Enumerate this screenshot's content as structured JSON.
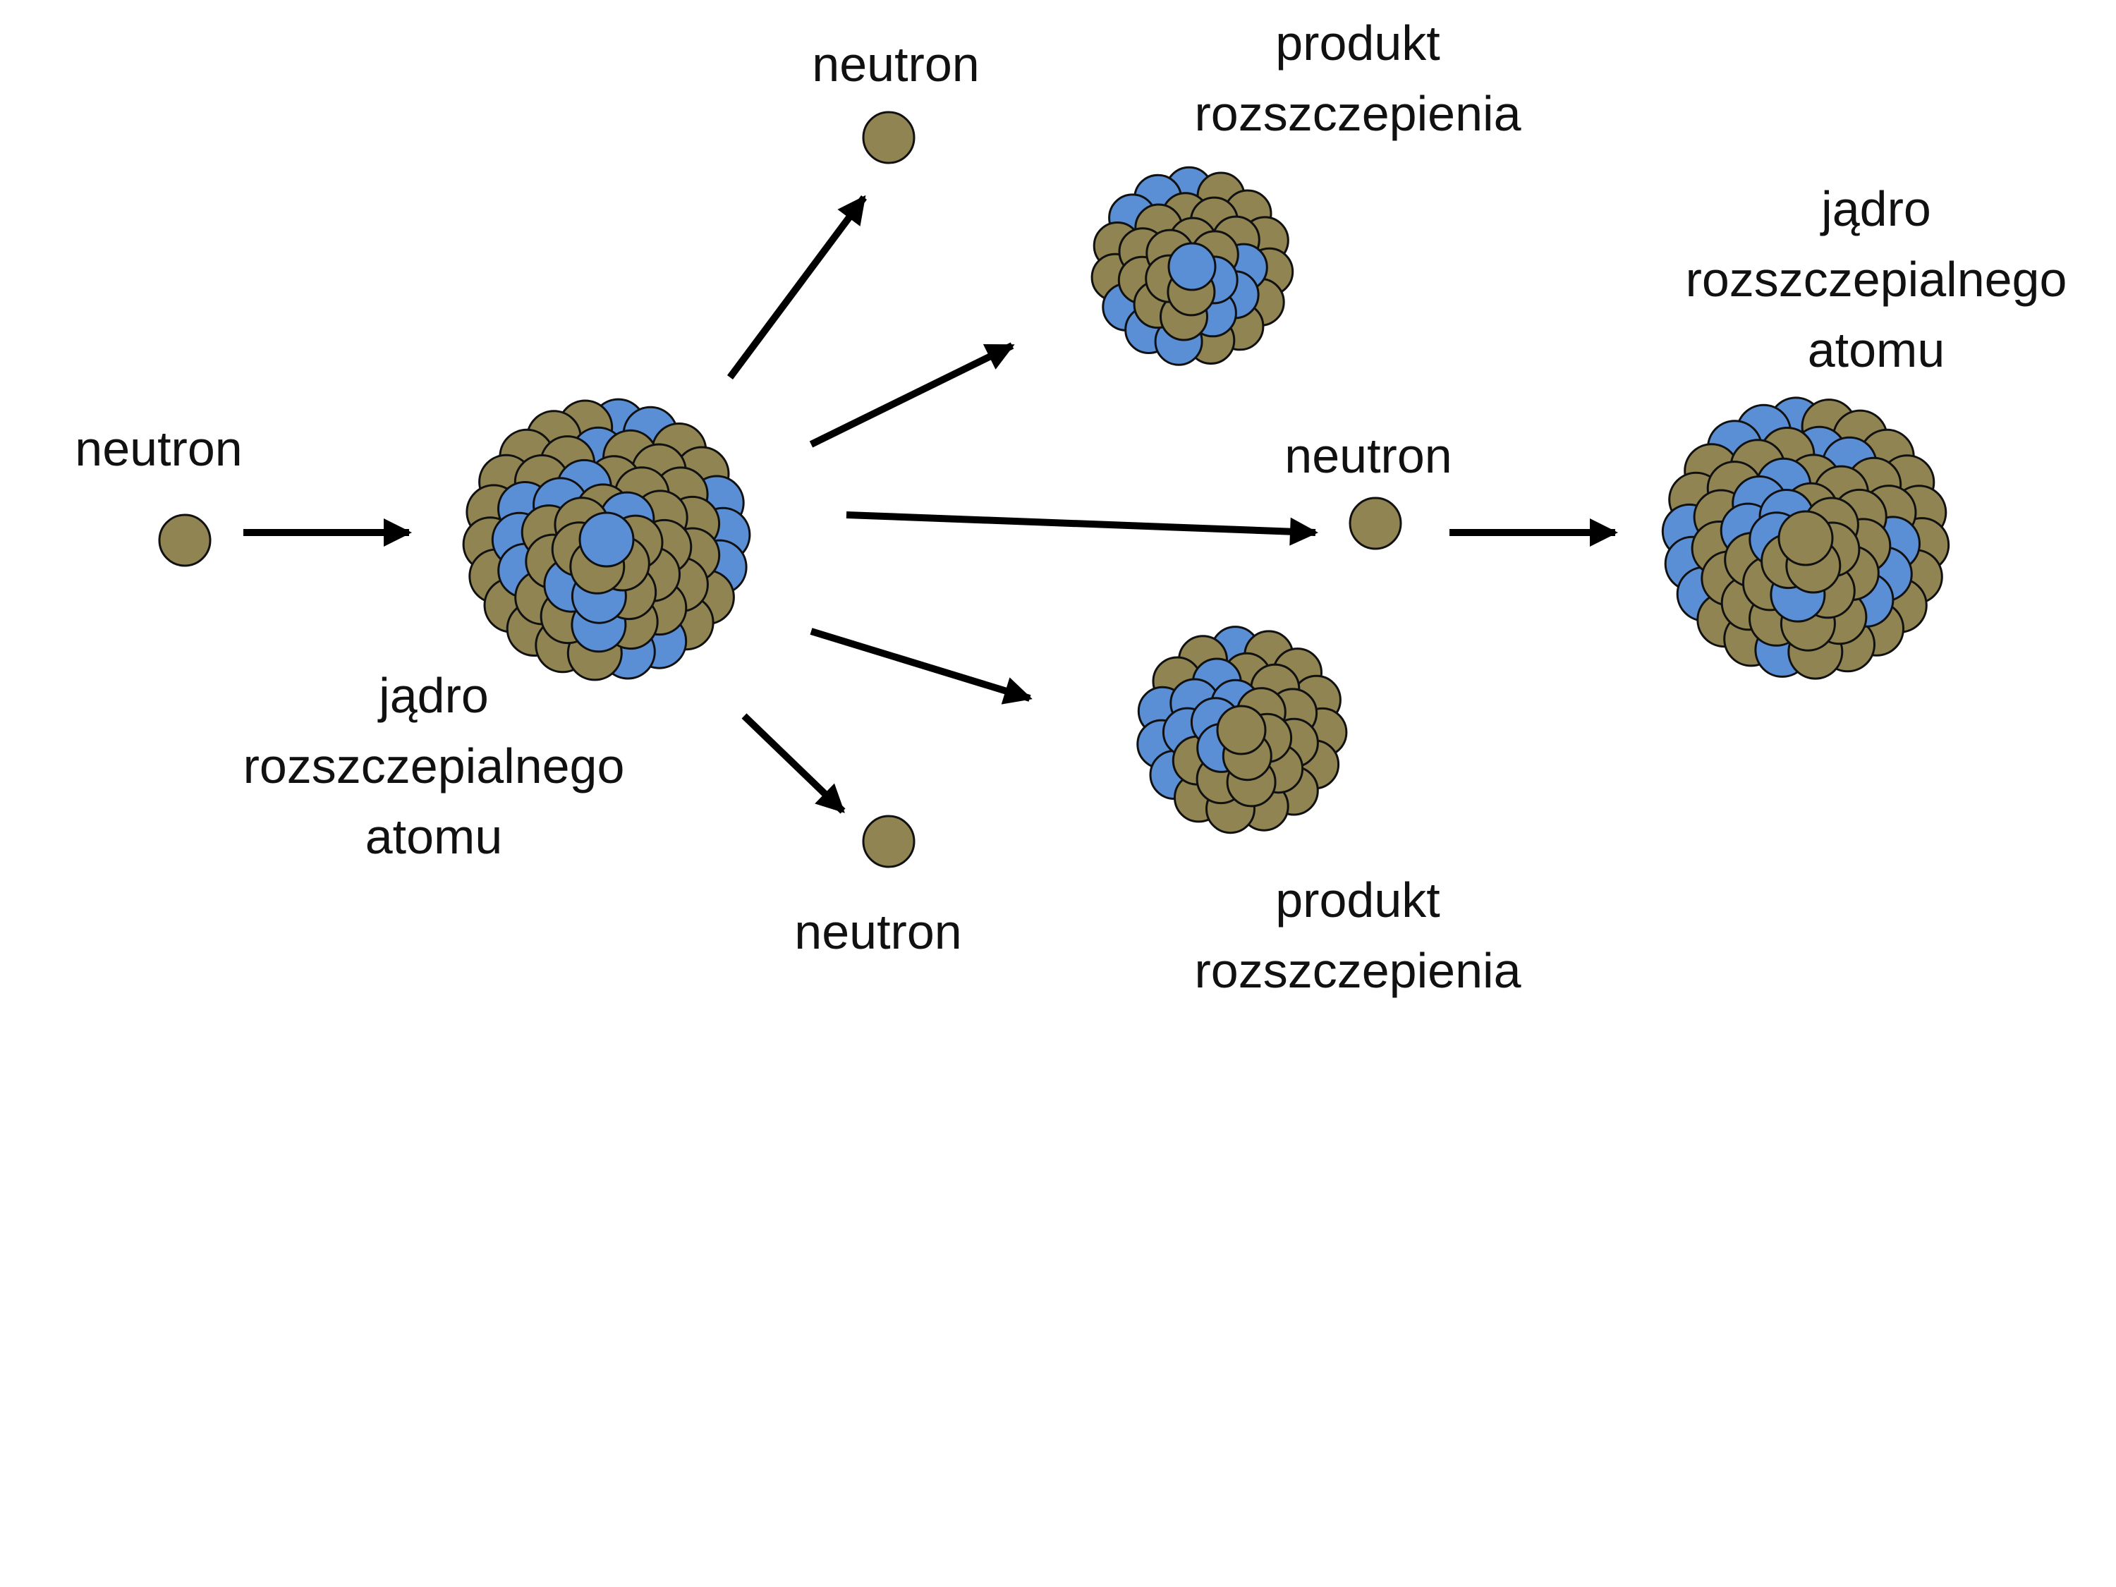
{
  "colors": {
    "neutron": "#8f8452",
    "proton": "#5a8fd6",
    "arrow": "#000000",
    "text": "#111111"
  },
  "labels": {
    "incoming_neutron": "neutron",
    "fissile_nucleus": [
      "jądro",
      "rozszczepialnego",
      "atomu"
    ],
    "emitted_neutron_top": "neutron",
    "emitted_neutron_bottom": "neutron",
    "emitted_neutron_middle": "neutron",
    "fission_product_top": [
      "produkt",
      "rozszczepienia"
    ],
    "fission_product_bottom": [
      "produkt",
      "rozszczepienia"
    ],
    "next_fissile_nucleus": [
      "jądro",
      "rozszczepialnego",
      "atomu"
    ]
  }
}
